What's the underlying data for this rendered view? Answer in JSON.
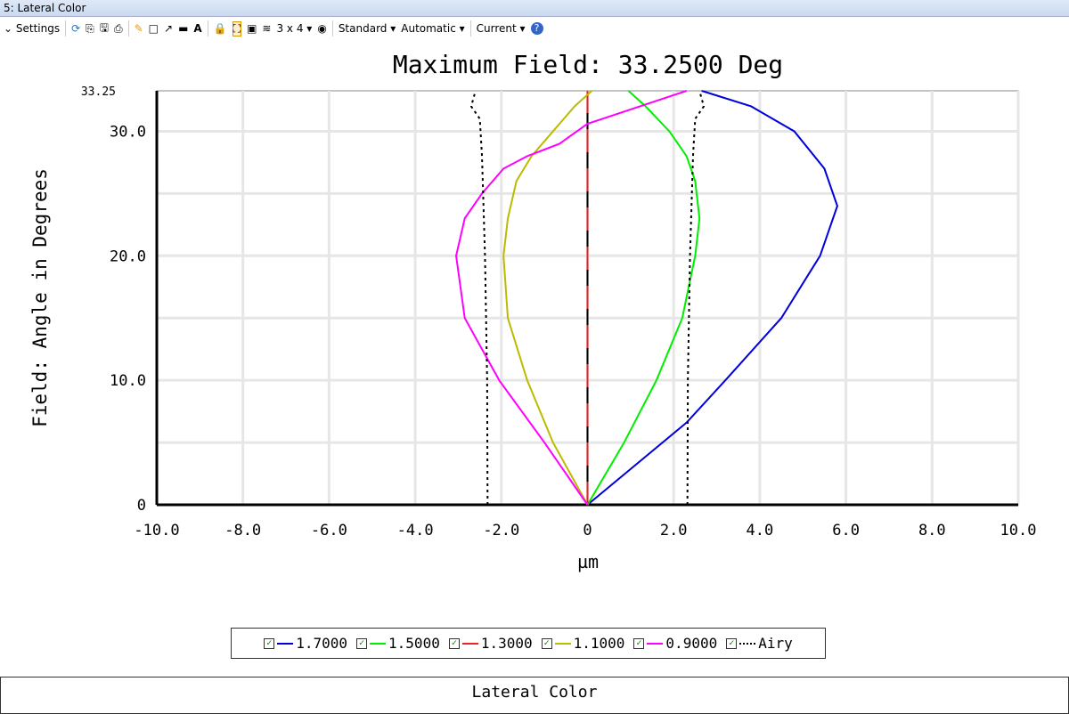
{
  "window": {
    "title": "5: Lateral Color"
  },
  "toolbar": {
    "settings": "Settings",
    "layout": "3 x 4 ▾",
    "standard": "Standard ▾",
    "automatic": "Automatic ▾",
    "current": "Current ▾"
  },
  "footer": {
    "label": "Lateral Color"
  },
  "chart_data": {
    "type": "line",
    "title": "Maximum Field: 33.2500 Deg",
    "xlabel": "µm",
    "ylabel": "Field: Angle in Degrees",
    "xlim": [
      -10,
      10
    ],
    "ylim": [
      0,
      33.25
    ],
    "xticks": [
      "-10.0",
      "-8.0",
      "-6.0",
      "-4.0",
      "-2.0",
      "0",
      "2.0",
      "4.0",
      "6.0",
      "8.0",
      "10.0"
    ],
    "yticks": [
      "0",
      "10.0",
      "20.0",
      "30.0"
    ],
    "ymax_label": "33.25",
    "grid": true,
    "legend": "bottom",
    "series": [
      {
        "name": "1.7000",
        "color": "#0000dd",
        "style": "solid",
        "x": [
          0,
          2.3,
          3.2,
          4.5,
          5.4,
          5.8,
          5.5,
          4.8,
          3.8,
          2.65
        ],
        "y": [
          0,
          6.6,
          10,
          15,
          20,
          24,
          27,
          30,
          32,
          33.25
        ]
      },
      {
        "name": "1.5000",
        "color": "#00ee00",
        "style": "solid",
        "x": [
          0,
          0.85,
          1.6,
          2.2,
          2.5,
          2.6,
          2.5,
          2.3,
          1.9,
          1.35,
          0.95
        ],
        "y": [
          0,
          5,
          10,
          15,
          20,
          23,
          26,
          28,
          30,
          32,
          33.25
        ]
      },
      {
        "name": "1.3000",
        "color": "#ee2222",
        "style": "dash",
        "x": [
          0,
          0
        ],
        "y": [
          0,
          33.25
        ]
      },
      {
        "name": "1.1000",
        "color": "#bbbb00",
        "style": "solid",
        "x": [
          0,
          -0.8,
          -1.4,
          -1.85,
          -1.95,
          -1.85,
          -1.65,
          -1.3,
          -0.8,
          -0.3,
          0.1
        ],
        "y": [
          0,
          5,
          10,
          15,
          20,
          23,
          26,
          28,
          30,
          32,
          33.25
        ]
      },
      {
        "name": "0.9000",
        "color": "#ff00ff",
        "style": "solid",
        "x": [
          0,
          -1.0,
          -2.05,
          -2.85,
          -3.05,
          -2.85,
          -2.45,
          -1.95,
          -1.4,
          -0.65,
          0,
          2.3
        ],
        "y": [
          0,
          5,
          10,
          15,
          20,
          23,
          25,
          27,
          28,
          29,
          30.6,
          33.25
        ]
      },
      {
        "name": "Airy",
        "color": "#000000",
        "style": "dot",
        "x": [
          2.32,
          2.33,
          2.38,
          2.45,
          2.5,
          2.7,
          2.6
        ],
        "y": [
          0,
          10,
          20,
          28,
          31,
          32,
          33.25
        ],
        "mirror": true
      }
    ]
  }
}
